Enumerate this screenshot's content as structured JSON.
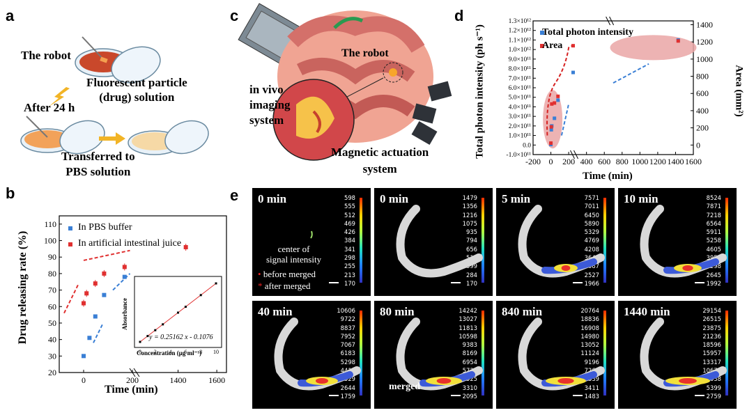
{
  "panels": {
    "a": {
      "label": "a",
      "robot": "The robot",
      "solution": [
        "Fluorescent particle",
        "(drug) solution"
      ],
      "after": "After 24 h",
      "transferred": [
        "Transferred to",
        "PBS solution"
      ]
    },
    "b": {
      "label": "b",
      "legend": [
        "In PBS buffer",
        "In artificial intestinal juice"
      ],
      "inset": {
        "xlabel": "Concentration (μg ml⁻¹)",
        "ylabel": "Absorbance",
        "equation": "y = 0.25162 x - 0.1076",
        "xticks": [
          "0",
          "2",
          "4",
          "6",
          "8",
          "10"
        ]
      }
    },
    "c": {
      "label": "c",
      "robot": "The robot",
      "imaging": [
        "in vivo",
        "imaging",
        "system"
      ],
      "actuation": [
        "Magnetic actuation",
        "system"
      ]
    },
    "d": {
      "label": "d"
    },
    "e": {
      "label": "e",
      "annot": [
        "center of",
        "signal intensity"
      ],
      "before": "before merged",
      "after": "after merged",
      "merged": "merged",
      "tiles": [
        {
          "time": "0 min",
          "ticks": [
            "598",
            "555",
            "512",
            "469",
            "426",
            "384",
            "341",
            "298",
            "255",
            "213",
            "170"
          ]
        },
        {
          "time": "0 min",
          "ticks": [
            "1479",
            "1356",
            "1216",
            "1075",
            "935",
            "794",
            "656",
            "513",
            "399",
            "284",
            "170"
          ]
        },
        {
          "time": "5 min",
          "ticks": [
            "7571",
            "7011",
            "6450",
            "5890",
            "5329",
            "4769",
            "4208",
            "3648",
            "3087",
            "2527",
            "1966"
          ]
        },
        {
          "time": "10 min",
          "ticks": [
            "8524",
            "7871",
            "7218",
            "6564",
            "5911",
            "5258",
            "4605",
            "3952",
            "3298",
            "2645",
            "1992"
          ]
        },
        {
          "time": "40 min",
          "ticks": [
            "10606",
            "9722",
            "8837",
            "7952",
            "7067",
            "6183",
            "5298",
            "4413",
            "3529",
            "2644",
            "1759"
          ]
        },
        {
          "time": "80 min",
          "ticks": [
            "14242",
            "13027",
            "11813",
            "10598",
            "9383",
            "8169",
            "6954",
            "5739",
            "4525",
            "3310",
            "2095"
          ]
        },
        {
          "time": "840 min",
          "ticks": [
            "20764",
            "18836",
            "16908",
            "14980",
            "13052",
            "11124",
            "9196",
            "7267",
            "5339",
            "3411",
            "1483"
          ]
        },
        {
          "time": "1440 min",
          "ticks": [
            "29154",
            "26515",
            "23875",
            "21236",
            "18596",
            "15957",
            "13317",
            "10678",
            "8038",
            "5399",
            "2759"
          ]
        }
      ]
    }
  },
  "chart_data": [
    {
      "type": "scatter",
      "panel": "b",
      "xlabel": "Time (min)",
      "ylabel": "Drug releasing rate (%)",
      "xlim": [
        -100,
        1650
      ],
      "ylim": [
        20,
        115
      ],
      "x_ticks": [
        "0",
        "200",
        "1400",
        "1600"
      ],
      "y_ticks": [
        "20",
        "30",
        "40",
        "50",
        "60",
        "70",
        "80",
        "90",
        "100",
        "110"
      ],
      "axis_break": true,
      "series": [
        {
          "name": "In PBS buffer",
          "color": "#3a7fd5",
          "points": [
            {
              "x": 0,
              "y": 30
            },
            {
              "x": 24,
              "y": 41
            },
            {
              "x": 48,
              "y": 54
            },
            {
              "x": 84,
              "y": 67
            },
            {
              "x": 168,
              "y": 78
            }
          ]
        },
        {
          "name": "In artificial intestinal juice",
          "color": "#e03030",
          "points": [
            {
              "x": 0,
              "y": 62
            },
            {
              "x": 12,
              "y": 68
            },
            {
              "x": 48,
              "y": 74
            },
            {
              "x": 84,
              "y": 80
            },
            {
              "x": 168,
              "y": 84
            },
            {
              "x": 1440,
              "y": 96
            }
          ]
        }
      ],
      "grid": false,
      "legend": "top-left"
    },
    {
      "type": "scatter",
      "panel": "d",
      "xlabel": "Time (min)",
      "ylabel": "Total photon intensity (ph s⁻¹)",
      "y2label": "Area (mm²)",
      "x_ticks": [
        "-200",
        "0",
        "200",
        "400",
        "600",
        "800",
        "1000",
        "1200",
        "1400",
        "1600"
      ],
      "y_ticks": [
        "-1.0×10¹¹",
        "0.0",
        "1.0×10¹¹",
        "2.0×10¹¹",
        "3.0×10¹¹",
        "4.0×10¹¹",
        "5.0×10¹¹",
        "6.0×10¹¹",
        "7.0×10¹¹",
        "8.0×10¹¹",
        "9.0×10¹¹",
        "1.0×10¹²",
        "1.1×10¹²",
        "1.2×10¹²",
        "1.3×10¹²"
      ],
      "y2_ticks": [
        "0",
        "200",
        "400",
        "600",
        "800",
        "1000",
        "1200",
        "1400"
      ],
      "axis_break": true,
      "series": [
        {
          "name": "Total photon intensity",
          "color": "#3a7fd5",
          "points": [
            {
              "x": 0,
              "y": 0.05
            },
            {
              "x": 5,
              "y": 1.6
            },
            {
              "x": 10,
              "y": 2.0
            },
            {
              "x": 40,
              "y": 2.8
            },
            {
              "x": 80,
              "y": 4.7
            },
            {
              "x": 840,
              "y": 7.6
            },
            {
              "x": 1440,
              "y": 11.0
            }
          ]
        },
        {
          "name": "Area",
          "color": "#e03030",
          "points": [
            {
              "x": 0,
              "y": 0.2
            },
            {
              "x": 5,
              "y": 1.9
            },
            {
              "x": 10,
              "y": 4.3
            },
            {
              "x": 40,
              "y": 4.4
            },
            {
              "x": 80,
              "y": 5.1
            },
            {
              "x": 840,
              "y": 10.4
            },
            {
              "x": 1440,
              "y": 10.9
            }
          ]
        }
      ],
      "legend": "top-left"
    }
  ]
}
